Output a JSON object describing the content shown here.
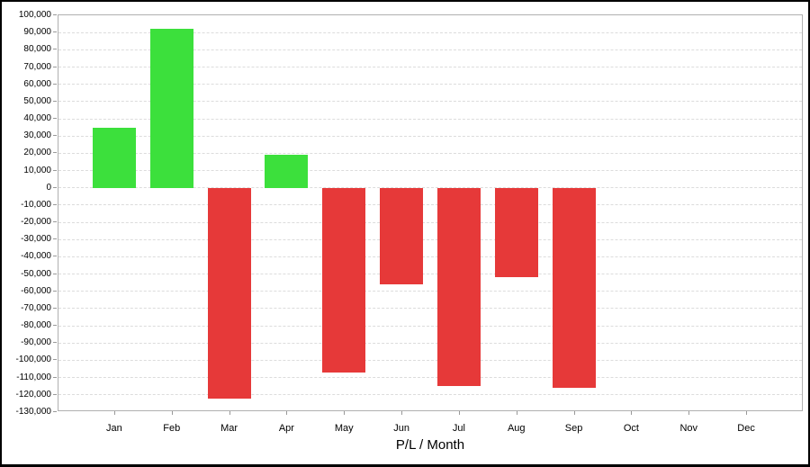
{
  "chart_data": {
    "type": "bar",
    "xlabel": "P/L / Month",
    "ylabel": "",
    "categories": [
      "Jan",
      "Feb",
      "Mar",
      "Apr",
      "May",
      "Jun",
      "Jul",
      "Aug",
      "Sep",
      "Oct",
      "Nov",
      "Dec"
    ],
    "values": [
      35000,
      92000,
      -122000,
      19000,
      -107000,
      -56000,
      -115000,
      -52000,
      -116000,
      0,
      0,
      0
    ],
    "ylim": [
      -130000,
      100000
    ],
    "yticks": [
      100000,
      90000,
      80000,
      70000,
      60000,
      50000,
      40000,
      30000,
      20000,
      10000,
      0,
      -10000,
      -20000,
      -30000,
      -40000,
      -50000,
      -60000,
      -70000,
      -80000,
      -90000,
      -100000,
      -110000,
      -120000,
      -130000
    ],
    "grid": "horizontal-dashed",
    "legend": "none",
    "colors": {
      "positive_bar": "#3ce03c",
      "negative_bar": "#e63939",
      "gridline": "#dcdcdc",
      "plot_border": "#b0b0b0",
      "tick": "#999999",
      "text": "#000000",
      "background": "#ffffff",
      "window_border": "#000000"
    }
  }
}
